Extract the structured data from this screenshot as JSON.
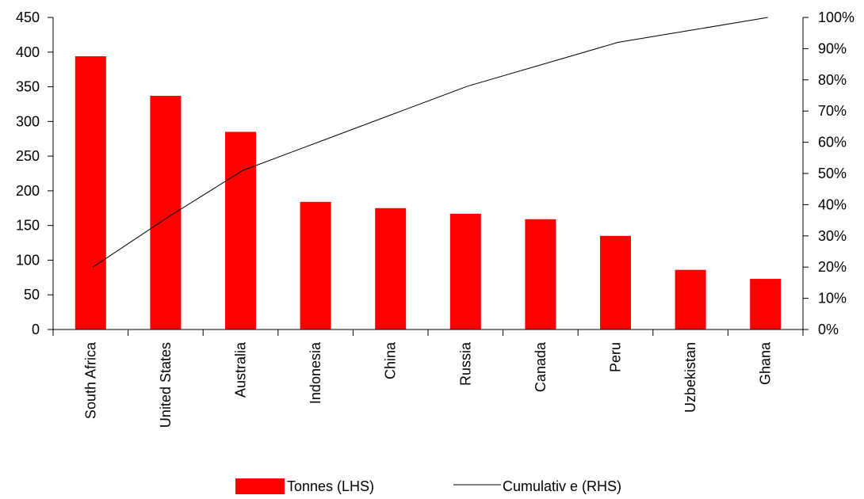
{
  "chart_data": {
    "type": "bar",
    "title": "",
    "xlabel": "",
    "ylabel": "",
    "y2label": "",
    "categories": [
      "South Africa",
      "United States",
      "Australia",
      "Indonesia",
      "China",
      "Russia",
      "Canada",
      "Peru",
      "Uzbekistan",
      "Ghana"
    ],
    "series": [
      {
        "name": "Tonnes (LHS)",
        "kind": "bar",
        "axis": "left",
        "color": "#ff0000",
        "values": [
          394,
          337,
          285,
          184,
          175,
          167,
          159,
          135,
          86,
          73
        ]
      },
      {
        "name": "Cumulative (RHS)",
        "legend_label": "Cumulativ e (RHS)",
        "kind": "line",
        "axis": "right",
        "color": "#000000",
        "values": [
          0.2,
          0.36,
          0.51,
          0.6,
          0.69,
          0.78,
          0.85,
          0.92,
          0.96,
          1.0
        ]
      }
    ],
    "ylim": [
      0,
      450
    ],
    "yticks": [
      0,
      50,
      100,
      150,
      200,
      250,
      300,
      350,
      400,
      450
    ],
    "y2lim": [
      0,
      1
    ],
    "y2ticks": [
      "0%",
      "10%",
      "20%",
      "30%",
      "40%",
      "50%",
      "60%",
      "70%",
      "80%",
      "90%",
      "100%"
    ],
    "grid": false,
    "legend_position": "bottom"
  }
}
